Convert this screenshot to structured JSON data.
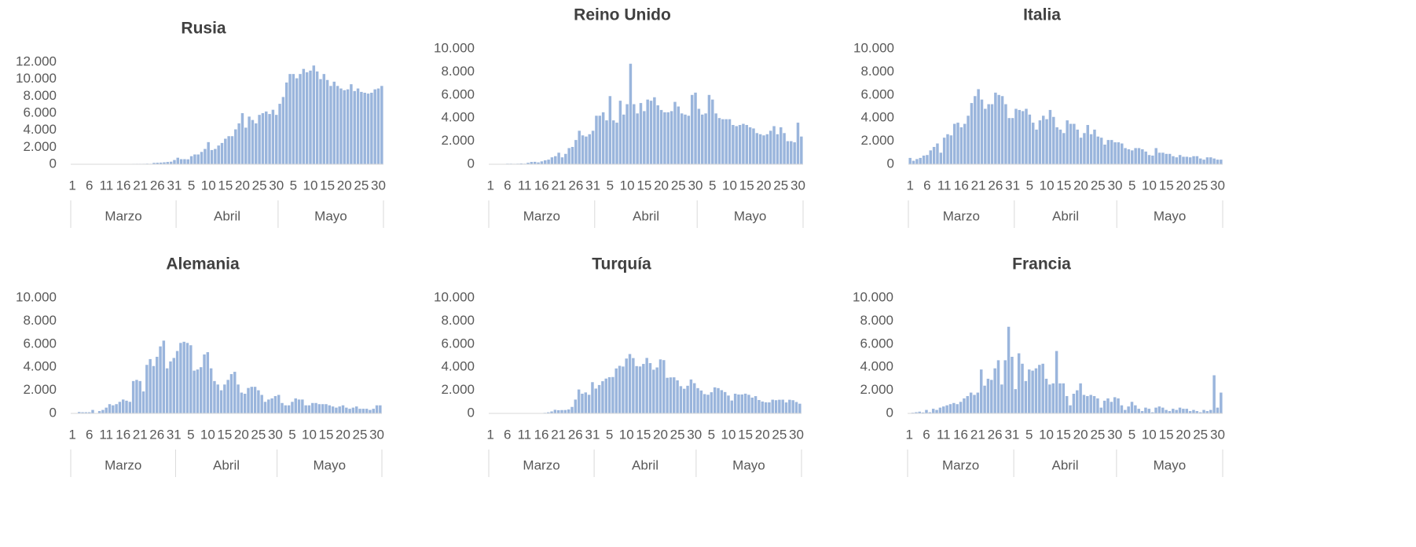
{
  "chart_data": [
    {
      "type": "bar",
      "title": "Rusia",
      "color": "#9ab5dc",
      "categories": [
        "1",
        null,
        null,
        null,
        null,
        "6",
        null,
        null,
        null,
        null,
        "11",
        null,
        null,
        null,
        null,
        "16",
        null,
        null,
        null,
        null,
        "21",
        null,
        null,
        null,
        null,
        "26",
        null,
        null,
        null,
        null,
        "31",
        null,
        null,
        null,
        null,
        "5",
        null,
        null,
        null,
        null,
        "10",
        null,
        null,
        null,
        null,
        "15",
        null,
        null,
        null,
        null,
        "20",
        null,
        null,
        null,
        null,
        "25",
        null,
        null,
        null,
        null,
        "30",
        null,
        null,
        null,
        null,
        "5",
        null,
        null,
        null,
        null,
        "10",
        null,
        null,
        null,
        null,
        "15",
        null,
        null,
        null,
        null,
        "20",
        null,
        null,
        null,
        null,
        "25",
        null,
        null,
        null,
        null,
        "30",
        null
      ],
      "groups": [
        "Marzo",
        "Abril",
        "Mayo"
      ],
      "values": [
        0,
        0,
        0,
        0,
        0,
        0,
        0,
        0,
        0,
        0,
        7,
        6,
        5,
        14,
        30,
        0,
        30,
        33,
        52,
        54,
        53,
        57,
        71,
        57,
        163,
        182,
        196,
        228,
        270,
        302,
        500,
        770,
        600,
        600,
        580,
        950,
        1150,
        1150,
        1450,
        1800,
        2600,
        1670,
        1800,
        2200,
        2500,
        3000,
        3300,
        3300,
        4100,
        4800,
        6000,
        4300,
        5600,
        5200,
        4800,
        5800,
        6000,
        6200,
        5900,
        6400,
        5800,
        7100,
        7900,
        9600,
        10600,
        10600,
        10100,
        10600,
        11200,
        10800,
        11000,
        11600,
        10900,
        10000,
        10600,
        9900,
        9200,
        9700,
        9200,
        8900,
        8700,
        8800,
        9400,
        8600,
        8900,
        8500,
        8400,
        8300,
        8400,
        8800,
        8900,
        9200
      ],
      "ylim": [
        0,
        12000
      ],
      "yticks": [
        0,
        {
          "value": 2000,
          "label": "2.000"
        },
        {
          "value": 4000,
          "label": "4.000"
        },
        {
          "value": 6000,
          "label": "6.000"
        },
        {
          "value": 8000,
          "label": "8.000"
        },
        {
          "value": 10000,
          "label": "10.000"
        },
        {
          "value": 12000,
          "label": "12.000"
        }
      ]
    },
    {
      "type": "bar",
      "title": "Reino Unido",
      "color": "#9ab5dc",
      "categories": [
        "1",
        null,
        null,
        null,
        null,
        "6",
        null,
        null,
        null,
        null,
        "11",
        null,
        null,
        null,
        null,
        "16",
        null,
        null,
        null,
        null,
        "21",
        null,
        null,
        null,
        null,
        "26",
        null,
        null,
        null,
        null,
        "31",
        null,
        null,
        null,
        null,
        "5",
        null,
        null,
        null,
        null,
        "10",
        null,
        null,
        null,
        null,
        "15",
        null,
        null,
        null,
        null,
        "20",
        null,
        null,
        null,
        null,
        "25",
        null,
        null,
        null,
        null,
        "30",
        null,
        null,
        null,
        null,
        "5",
        null,
        null,
        null,
        null,
        "10",
        null,
        null,
        null,
        null,
        "15",
        null,
        null,
        null,
        null,
        "20",
        null,
        null,
        null,
        null,
        "25",
        null,
        null,
        null,
        null,
        "30",
        null
      ],
      "groups": [
        "Marzo",
        "Abril",
        "Mayo"
      ],
      "values": [
        0,
        0,
        12,
        0,
        30,
        50,
        50,
        40,
        50,
        70,
        50,
        130,
        200,
        210,
        160,
        250,
        340,
        400,
        600,
        700,
        1000,
        600,
        900,
        1400,
        1500,
        2100,
        2900,
        2500,
        2400,
        2600,
        2900,
        4200,
        4200,
        4500,
        3800,
        5900,
        3800,
        3600,
        5500,
        4300,
        5200,
        8700,
        5200,
        4400,
        5300,
        4600,
        5600,
        5500,
        5800,
        5100,
        4700,
        4500,
        4500,
        4600,
        5400,
        5000,
        4400,
        4300,
        4200,
        6000,
        6200,
        4800,
        4300,
        4400,
        6000,
        5600,
        4400,
        4000,
        3900,
        3900,
        3900,
        3400,
        3300,
        3400,
        3500,
        3400,
        3200,
        3100,
        2700,
        2600,
        2500,
        2600,
        2900,
        3300,
        2600,
        3200,
        2700,
        2000,
        2000,
        1900,
        3600,
        2400
      ],
      "ylim": [
        0,
        10000
      ],
      "yticks": [
        0,
        {
          "value": 2000,
          "label": "2.000"
        },
        {
          "value": 4000,
          "label": "4.000"
        },
        {
          "value": 6000,
          "label": "6.000"
        },
        {
          "value": 8000,
          "label": "8.000"
        },
        {
          "value": 10000,
          "label": "10.000"
        }
      ]
    },
    {
      "type": "bar",
      "title": "Italia",
      "color": "#9ab5dc",
      "categories": [
        "1",
        null,
        null,
        null,
        null,
        "6",
        null,
        null,
        null,
        null,
        "11",
        null,
        null,
        null,
        null,
        "16",
        null,
        null,
        null,
        null,
        "21",
        null,
        null,
        null,
        null,
        "26",
        null,
        null,
        null,
        null,
        "31",
        null,
        null,
        null,
        null,
        "5",
        null,
        null,
        null,
        null,
        "10",
        null,
        null,
        null,
        null,
        "15",
        null,
        null,
        null,
        null,
        "20",
        null,
        null,
        null,
        null,
        "25",
        null,
        null,
        null,
        null,
        "30",
        null,
        null,
        null,
        null,
        "5",
        null,
        null,
        null,
        null,
        "10",
        null,
        null,
        null,
        null,
        "15",
        null,
        null,
        null,
        null,
        "20",
        null,
        null,
        null,
        null,
        "25",
        null,
        null,
        null,
        null,
        "30",
        null
      ],
      "groups": [
        "Marzo",
        "Abril",
        "Mayo"
      ],
      "values": [
        550,
        300,
        450,
        550,
        750,
        800,
        1200,
        1500,
        1800,
        1000,
        2300,
        2600,
        2500,
        3500,
        3600,
        3200,
        3500,
        4200,
        5300,
        5900,
        6500,
        5600,
        4800,
        5200,
        5200,
        6200,
        6000,
        5900,
        5200,
        4000,
        4000,
        4800,
        4700,
        4600,
        4800,
        4300,
        3600,
        3000,
        3800,
        4200,
        3900,
        4700,
        4100,
        3200,
        3000,
        2700,
        3800,
        3500,
        3500,
        3000,
        2300,
        2700,
        3400,
        2600,
        3000,
        2400,
        2300,
        1700,
        2100,
        2100,
        1900,
        1900,
        1800,
        1400,
        1300,
        1200,
        1400,
        1400,
        1300,
        1100,
        800,
        750,
        1400,
        1000,
        1000,
        900,
        900,
        700,
        600,
        800,
        650,
        650,
        600,
        700,
        700,
        500,
        400,
        600,
        600,
        500,
        400,
        400
      ],
      "ylim": [
        0,
        10000
      ],
      "yticks": [
        0,
        {
          "value": 2000,
          "label": "2.000"
        },
        {
          "value": 4000,
          "label": "4.000"
        },
        {
          "value": 6000,
          "label": "6.000"
        },
        {
          "value": 8000,
          "label": "8.000"
        },
        {
          "value": 10000,
          "label": "10.000"
        }
      ]
    },
    {
      "type": "bar",
      "title": "Alemania",
      "color": "#9ab5dc",
      "categories": [
        "1",
        null,
        null,
        null,
        null,
        "6",
        null,
        null,
        null,
        null,
        "11",
        null,
        null,
        null,
        null,
        "16",
        null,
        null,
        null,
        null,
        "21",
        null,
        null,
        null,
        null,
        "26",
        null,
        null,
        null,
        null,
        "31",
        null,
        null,
        null,
        null,
        "5",
        null,
        null,
        null,
        null,
        "10",
        null,
        null,
        null,
        null,
        "15",
        null,
        null,
        null,
        null,
        "20",
        null,
        null,
        null,
        null,
        "25",
        null,
        null,
        null,
        null,
        "30",
        null,
        null,
        null,
        null,
        "5",
        null,
        null,
        null,
        null,
        "10",
        null,
        null,
        null,
        null,
        "15",
        null,
        null,
        null,
        null,
        "20",
        null,
        null,
        null,
        null,
        "25",
        null,
        null,
        null,
        null,
        "30",
        null
      ],
      "groups": [
        "Marzo",
        "Abril",
        "Mayo"
      ],
      "values": [
        0,
        0,
        120,
        100,
        100,
        100,
        300,
        0,
        200,
        300,
        500,
        800,
        700,
        800,
        1000,
        1200,
        1100,
        1000,
        2800,
        2900,
        2800,
        1900,
        4200,
        4700,
        4100,
        4900,
        5800,
        6300,
        3900,
        4500,
        4800,
        5400,
        6100,
        6200,
        6100,
        5900,
        3700,
        3800,
        4000,
        5100,
        5300,
        3900,
        2800,
        2500,
        2000,
        2500,
        2900,
        3400,
        3600,
        2500,
        1800,
        1700,
        2200,
        2300,
        2300,
        2000,
        1600,
        1000,
        1200,
        1300,
        1500,
        1600,
        900,
        700,
        700,
        1000,
        1300,
        1200,
        1200,
        700,
        700,
        900,
        900,
        800,
        800,
        800,
        700,
        600,
        500,
        600,
        700,
        500,
        400,
        500,
        600,
        400,
        400,
        400,
        300,
        400,
        700,
        700
      ],
      "ylim": [
        0,
        10000
      ],
      "yticks": [
        0,
        {
          "value": 2000,
          "label": "2.000"
        },
        {
          "value": 4000,
          "label": "4.000"
        },
        {
          "value": 6000,
          "label": "6.000"
        },
        {
          "value": 8000,
          "label": "8.000"
        },
        {
          "value": 10000,
          "label": "10.000"
        }
      ]
    },
    {
      "type": "bar",
      "title": "Turquía",
      "color": "#9ab5dc",
      "categories": [
        "1",
        null,
        null,
        null,
        null,
        "6",
        null,
        null,
        null,
        null,
        "11",
        null,
        null,
        null,
        null,
        "16",
        null,
        null,
        null,
        null,
        "21",
        null,
        null,
        null,
        null,
        "26",
        null,
        null,
        null,
        null,
        "31",
        null,
        null,
        null,
        null,
        "5",
        null,
        null,
        null,
        null,
        "10",
        null,
        null,
        null,
        null,
        "15",
        null,
        null,
        null,
        null,
        "20",
        null,
        null,
        null,
        null,
        "25",
        null,
        null,
        null,
        null,
        "30",
        null,
        null,
        null,
        null,
        "5",
        null,
        null,
        null,
        null,
        "10",
        null,
        null,
        null,
        null,
        "15",
        null,
        null,
        null,
        null,
        "20",
        null,
        null,
        null,
        null,
        "25",
        null,
        null,
        null,
        null,
        "30",
        null
      ],
      "groups": [
        "Marzo",
        "Abril",
        "Mayo"
      ],
      "values": [
        0,
        0,
        0,
        0,
        0,
        0,
        0,
        0,
        0,
        0,
        1,
        0,
        3,
        1,
        12,
        29,
        51,
        93,
        168,
        311,
        277,
        289,
        293,
        343,
        561,
        1196,
        2069,
        1704,
        1815,
        1610,
        2704,
        2148,
        2456,
        2786,
        3013,
        3135,
        3148,
        3892,
        4117,
        4056,
        4747,
        5138,
        4789,
        4093,
        4062,
        4281,
        4801,
        4353,
        3783,
        3977,
        4674,
        4611,
        3083,
        3116,
        3122,
        2861,
        2357,
        2131,
        2392,
        2936,
        2615,
        2188,
        1983,
        1670,
        1614,
        1832,
        2253,
        2188,
        2011,
        1848,
        1546,
        1114,
        1704,
        1635,
        1639,
        1708,
        1610,
        1368,
        1492,
        1158,
        1028,
        961,
        952,
        1186,
        1141,
        1182,
        1186,
        948,
        1182,
        1141,
        987,
        839
      ],
      "ylim": [
        0,
        10000
      ],
      "yticks": [
        0,
        {
          "value": 2000,
          "label": "2.000"
        },
        {
          "value": 4000,
          "label": "4.000"
        },
        {
          "value": 6000,
          "label": "6.000"
        },
        {
          "value": 8000,
          "label": "8.000"
        },
        {
          "value": 10000,
          "label": "10.000"
        }
      ]
    },
    {
      "type": "bar",
      "title": "Francia",
      "color": "#9ab5dc",
      "categories": [
        "1",
        null,
        null,
        null,
        null,
        "6",
        null,
        null,
        null,
        null,
        "11",
        null,
        null,
        null,
        null,
        "16",
        null,
        null,
        null,
        null,
        "21",
        null,
        null,
        null,
        null,
        "26",
        null,
        null,
        null,
        null,
        "31",
        null,
        null,
        null,
        null,
        "5",
        null,
        null,
        null,
        null,
        "10",
        null,
        null,
        null,
        null,
        "15",
        null,
        null,
        null,
        null,
        "20",
        null,
        null,
        null,
        null,
        "25",
        null,
        null,
        null,
        null,
        "30",
        null,
        null,
        null,
        null,
        "5",
        null,
        null,
        null,
        null,
        "10",
        null,
        null,
        null,
        null,
        "15",
        null,
        null,
        null,
        null,
        "20",
        null,
        null,
        null,
        null,
        "25",
        null,
        null,
        null,
        null,
        "30",
        null
      ],
      "groups": [
        "Marzo",
        "Abril",
        "Mayo"
      ],
      "values": [
        30,
        60,
        100,
        150,
        80,
        300,
        100,
        400,
        300,
        500,
        600,
        700,
        800,
        900,
        800,
        1000,
        1300,
        1500,
        1800,
        1600,
        1800,
        3800,
        2400,
        3000,
        2900,
        3900,
        4600,
        2500,
        4600,
        7500,
        4900,
        2100,
        5200,
        4300,
        2800,
        3800,
        3700,
        3900,
        4200,
        4300,
        3000,
        2500,
        2600,
        5400,
        2600,
        2600,
        1500,
        700,
        1700,
        2000,
        2600,
        1600,
        1500,
        1600,
        1500,
        1300,
        500,
        1100,
        1300,
        1000,
        1400,
        1300,
        700,
        300,
        600,
        1000,
        700,
        400,
        200,
        500,
        400,
        100,
        500,
        600,
        500,
        300,
        200,
        400,
        300,
        500,
        400,
        400,
        200,
        300,
        200,
        100,
        300,
        200,
        300,
        3300,
        500,
        1800
      ],
      "ylim": [
        0,
        10000
      ],
      "yticks": [
        0,
        {
          "value": 2000,
          "label": "2.000"
        },
        {
          "value": 4000,
          "label": "4.000"
        },
        {
          "value": 6000,
          "label": "6.000"
        },
        {
          "value": 8000,
          "label": "8.000"
        },
        {
          "value": 10000,
          "label": "10.000"
        }
      ]
    }
  ]
}
